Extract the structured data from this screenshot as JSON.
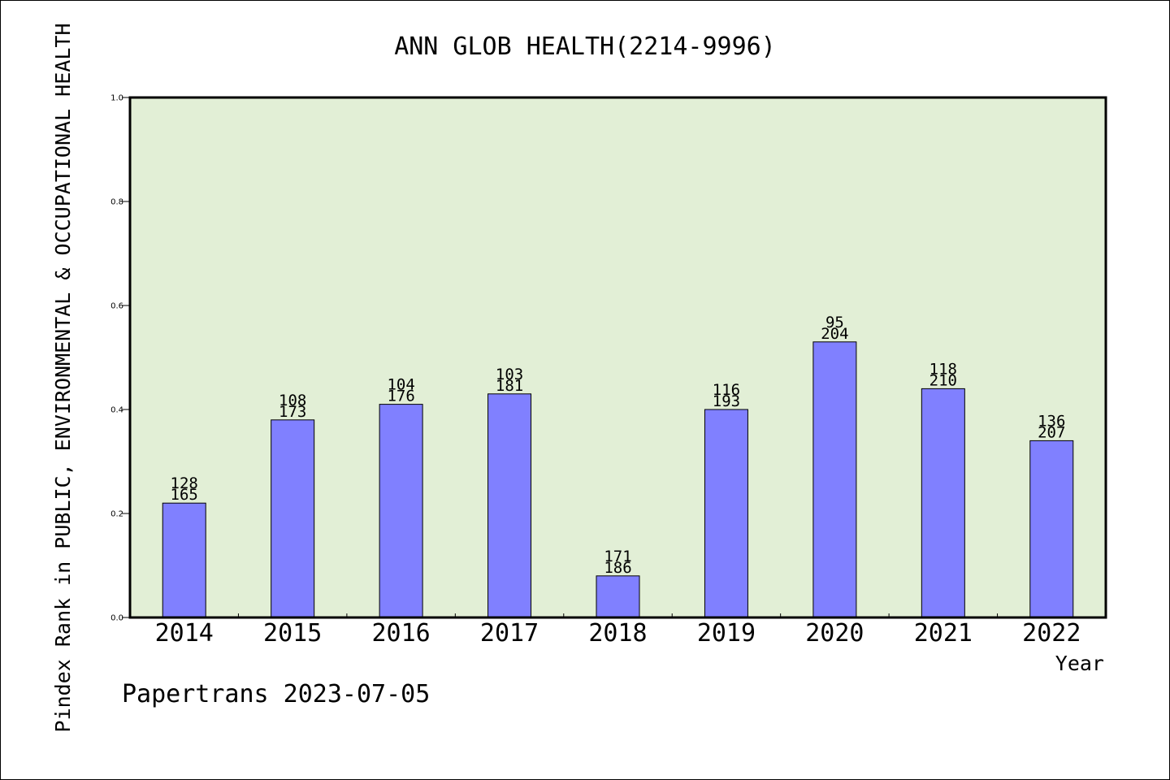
{
  "title": "ANN GLOB HEALTH(2214-9996)",
  "ylabel": "Pindex Rank in PUBLIC, ENVIRONMENTAL & OCCUPATIONAL HEALTH",
  "xlabel": "Year",
  "footer": "Papertrans 2023-07-05",
  "colors": {
    "plot_background": "#e2efd6",
    "bar_fill": "#8080ff",
    "bar_stroke": "#000000",
    "frame": "#000000"
  },
  "chart_data": {
    "type": "bar",
    "title": "ANN GLOB HEALTH(2214-9996)",
    "xlabel": "Year",
    "ylabel": "Pindex Rank in PUBLIC, ENVIRONMENTAL & OCCUPATIONAL HEALTH",
    "ylim": [
      0,
      1.0
    ],
    "yticks": [
      "0.0",
      "0.2",
      "0.4",
      "0.6",
      "0.8",
      "1.0"
    ],
    "grid": false,
    "categories": [
      "2014",
      "2015",
      "2016",
      "2017",
      "2018",
      "2019",
      "2020",
      "2021",
      "2022"
    ],
    "values": [
      0.22,
      0.38,
      0.41,
      0.43,
      0.08,
      0.4,
      0.53,
      0.44,
      0.34
    ],
    "labels_top": [
      "128",
      "108",
      "104",
      "103",
      "171",
      "116",
      "95",
      "118",
      "136"
    ],
    "labels_bottom": [
      "165",
      "173",
      "176",
      "181",
      "186",
      "193",
      "204",
      "210",
      "207"
    ]
  }
}
